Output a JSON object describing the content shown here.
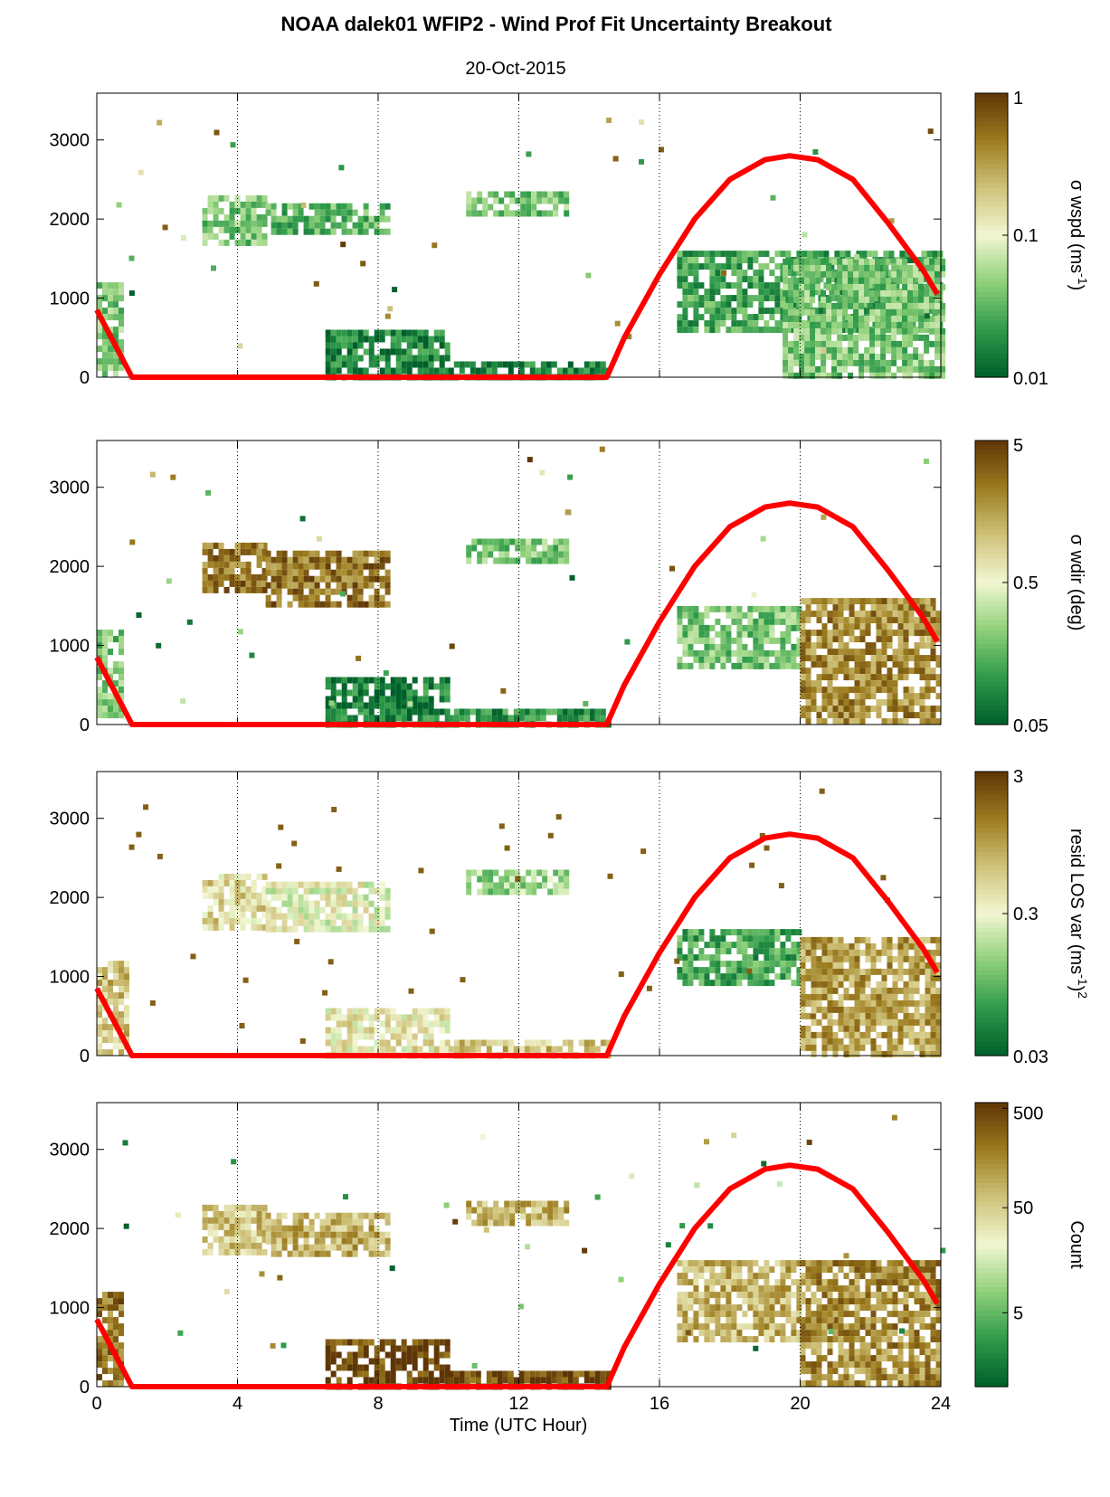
{
  "title": "NOAA dalek01 WFIP2 - Wind Prof Fit Uncertainty Breakout",
  "subtitle": "20-Oct-2015",
  "xlabel": "Time (UTC Hour)",
  "colors": {
    "sun_curve": "#ff0000",
    "colormap": [
      "#005f2a",
      "#2e9a4a",
      "#8fd07a",
      "#f2f7d2",
      "#cfc27a",
      "#9c7c1f",
      "#5e3506"
    ]
  },
  "chart_data": [
    {
      "type": "heatmap",
      "colorbar_label": "σ wspd (ms⁻¹)",
      "colorbar_label_parts": {
        "pre": "σ wspd (ms",
        "sup": "-1",
        "post": ")"
      },
      "colorbar_ticks": [
        "1",
        "0.1",
        "0.01"
      ],
      "colorbar_scale": "log",
      "colorbar_range": [
        0.01,
        1
      ],
      "xlim": [
        0,
        24
      ],
      "ylim": [
        0,
        3500
      ],
      "xticks": [
        0,
        4,
        8,
        12,
        16,
        20,
        24
      ],
      "yticks": [
        0,
        1000,
        2000,
        3000
      ],
      "grid_x": "dotted at 4, 8, 12, 16, 20",
      "regions": [
        {
          "x": [
            0,
            0.7
          ],
          "y": [
            0,
            1200
          ],
          "level": 0.3
        },
        {
          "x": [
            3,
            4.8
          ],
          "y": [
            1700,
            2300
          ],
          "level": 0.3
        },
        {
          "x": [
            4.8,
            8.3
          ],
          "y": [
            1800,
            2200
          ],
          "level": 0.25
        },
        {
          "x": [
            10.5,
            13.3
          ],
          "y": [
            2050,
            2350
          ],
          "level": 0.3
        },
        {
          "x": [
            6.5,
            10
          ],
          "y": [
            0,
            600
          ],
          "level": 0.1
        },
        {
          "x": [
            10,
            14.5
          ],
          "y": [
            0,
            200
          ],
          "level": 0.1
        },
        {
          "x": [
            16.5,
            24
          ],
          "y": [
            600,
            1600
          ],
          "level": 0.2
        },
        {
          "x": [
            19.5,
            24
          ],
          "y": [
            0,
            1500
          ],
          "level": 0.3
        }
      ]
    },
    {
      "type": "heatmap",
      "colorbar_label": "σ wdir (deg)",
      "colorbar_ticks": [
        "5",
        "0.5",
        "0.05"
      ],
      "colorbar_scale": "log",
      "colorbar_range": [
        0.05,
        5
      ],
      "xlim": [
        0,
        24
      ],
      "ylim": [
        0,
        3500
      ],
      "xticks": [
        0,
        4,
        8,
        12,
        16,
        20,
        24
      ],
      "yticks": [
        0,
        1000,
        2000,
        3000
      ],
      "grid_x": "dotted at 4, 8, 12, 16, 20",
      "regions": [
        {
          "x": [
            0,
            0.7
          ],
          "y": [
            0,
            1200
          ],
          "level": 0.3
        },
        {
          "x": [
            3,
            4.8
          ],
          "y": [
            1700,
            2300
          ],
          "level": 0.85
        },
        {
          "x": [
            4.8,
            8.3
          ],
          "y": [
            1500,
            2200
          ],
          "level": 0.85
        },
        {
          "x": [
            10.5,
            13.3
          ],
          "y": [
            2050,
            2350
          ],
          "level": 0.3
        },
        {
          "x": [
            6.5,
            10
          ],
          "y": [
            0,
            600
          ],
          "level": 0.1
        },
        {
          "x": [
            10,
            14.5
          ],
          "y": [
            0,
            200
          ],
          "level": 0.15
        },
        {
          "x": [
            16.5,
            20
          ],
          "y": [
            700,
            1500
          ],
          "level": 0.3
        },
        {
          "x": [
            20,
            24
          ],
          "y": [
            0,
            1600
          ],
          "level": 0.8
        }
      ]
    },
    {
      "type": "heatmap",
      "colorbar_label": "resid LOS var (ms⁻¹)²",
      "colorbar_label_parts": {
        "pre": "resid LOS var (ms",
        "sup": "-1",
        "post": ")",
        "sup2": "2"
      },
      "colorbar_ticks": [
        "3",
        "0.3",
        "0.03"
      ],
      "colorbar_scale": "log",
      "colorbar_range": [
        0.03,
        3
      ],
      "xlim": [
        0,
        24
      ],
      "ylim": [
        0,
        3500
      ],
      "xticks": [
        0,
        4,
        8,
        12,
        16,
        20,
        24
      ],
      "yticks": [
        0,
        1000,
        2000,
        3000
      ],
      "grid_x": "dotted at 4, 8, 12, 16, 20",
      "regions": [
        {
          "x": [
            0,
            0.8
          ],
          "y": [
            0,
            1200
          ],
          "level": 0.65
        },
        {
          "x": [
            3,
            4.8
          ],
          "y": [
            1600,
            2300
          ],
          "level": 0.6
        },
        {
          "x": [
            4.8,
            8.3
          ],
          "y": [
            1600,
            2200
          ],
          "level": 0.5
        },
        {
          "x": [
            10.5,
            13.3
          ],
          "y": [
            2050,
            2350
          ],
          "level": 0.35
        },
        {
          "x": [
            6.5,
            10
          ],
          "y": [
            0,
            600
          ],
          "level": 0.55
        },
        {
          "x": [
            10,
            14.5
          ],
          "y": [
            0,
            200
          ],
          "level": 0.65
        },
        {
          "x": [
            16.5,
            20
          ],
          "y": [
            900,
            1600
          ],
          "level": 0.2
        },
        {
          "x": [
            20,
            24
          ],
          "y": [
            0,
            1500
          ],
          "level": 0.75
        }
      ]
    },
    {
      "type": "heatmap",
      "colorbar_label": "Count",
      "colorbar_ticks": [
        "500",
        "50",
        "5"
      ],
      "colorbar_scale": "log",
      "xlim": [
        0,
        24
      ],
      "ylim": [
        0,
        3500
      ],
      "xticks": [
        0,
        4,
        8,
        12,
        16,
        20,
        24
      ],
      "yticks": [
        0,
        1000,
        2000,
        3000
      ],
      "grid_x": "dotted at 4, 8, 12, 16, 20",
      "regions": [
        {
          "x": [
            0,
            0.7
          ],
          "y": [
            0,
            1200
          ],
          "level": 0.85
        },
        {
          "x": [
            3,
            4.8
          ],
          "y": [
            1700,
            2300
          ],
          "level": 0.65
        },
        {
          "x": [
            4.8,
            8.3
          ],
          "y": [
            1700,
            2200
          ],
          "level": 0.7
        },
        {
          "x": [
            10.5,
            13.3
          ],
          "y": [
            2050,
            2350
          ],
          "level": 0.7
        },
        {
          "x": [
            6.5,
            10
          ],
          "y": [
            0,
            600
          ],
          "level": 0.97
        },
        {
          "x": [
            10,
            14.5
          ],
          "y": [
            0,
            200
          ],
          "level": 0.95
        },
        {
          "x": [
            16.5,
            20
          ],
          "y": [
            600,
            1600
          ],
          "level": 0.7
        },
        {
          "x": [
            20,
            24
          ],
          "y": [
            0,
            1600
          ],
          "level": 0.8
        }
      ]
    }
  ],
  "sun_curve": {
    "x": [
      0,
      1,
      14.5,
      15,
      16,
      17,
      18,
      19,
      19.7,
      20.5,
      21.5,
      22.5,
      23.5,
      23.9
    ],
    "y": [
      850,
      0,
      0,
      500,
      1300,
      2000,
      2500,
      2750,
      2800,
      2750,
      2500,
      1950,
      1350,
      1050
    ]
  }
}
